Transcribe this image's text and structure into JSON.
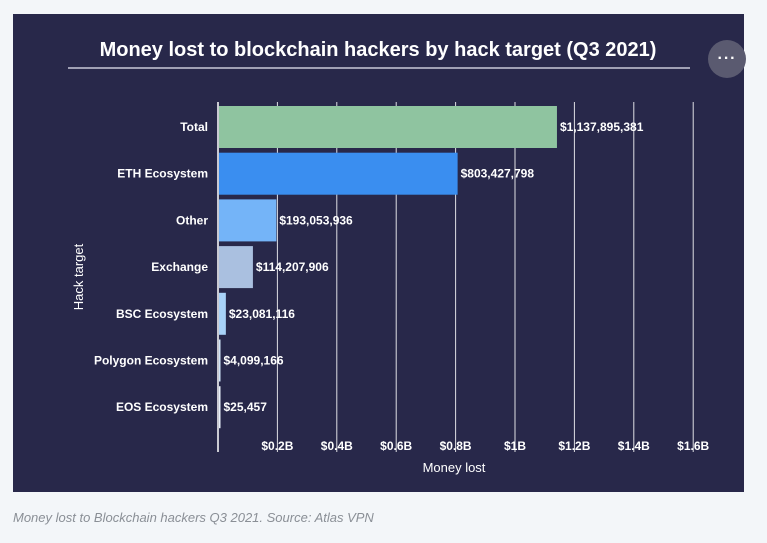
{
  "more_button": {
    "icon": "ellipsis-icon",
    "label": "···"
  },
  "caption": "Money lost to Blockchain hackers Q3 2021. Source: Atlas VPN",
  "colors": {
    "panel_bg": "#28284a",
    "text": "#ffffff",
    "grid": "#ffffff"
  },
  "chart_data": {
    "type": "bar",
    "orientation": "horizontal",
    "title": "Money lost to blockchain hackers by hack target (Q3 2021)",
    "xlabel": "Money lost",
    "ylabel": "Hack target",
    "xlim": [
      0,
      1700000000
    ],
    "grid": true,
    "categories": [
      "Total",
      "ETH Ecosystem",
      "Other",
      "Exchange",
      "BSC Ecosystem",
      "Polygon Ecosystem",
      "EOS Ecosystem"
    ],
    "values": [
      1137895381,
      803427798,
      193053936,
      114207906,
      23081116,
      4099166,
      25457
    ],
    "value_labels": [
      "$1,137,895,381",
      "$803,427,798",
      "$193,053,936",
      "$114,207,906",
      "$23,081,116",
      "$4,099,166",
      "$25,457"
    ],
    "bar_colors": [
      "#8fc4a0",
      "#3a8ef0",
      "#74b4f8",
      "#aac0e0",
      "#a8d2f8",
      "#d0e4f8",
      "#e8f0fa"
    ],
    "x_ticks": [
      {
        "value": 200000000,
        "label": "$0.2B"
      },
      {
        "value": 400000000,
        "label": "$0.4B"
      },
      {
        "value": 600000000,
        "label": "$0.6B"
      },
      {
        "value": 800000000,
        "label": "$0.8B"
      },
      {
        "value": 1000000000,
        "label": "$1B"
      },
      {
        "value": 1200000000,
        "label": "$1.2B"
      },
      {
        "value": 1400000000,
        "label": "$1.4B"
      },
      {
        "value": 1600000000,
        "label": "$1.6B"
      }
    ]
  }
}
